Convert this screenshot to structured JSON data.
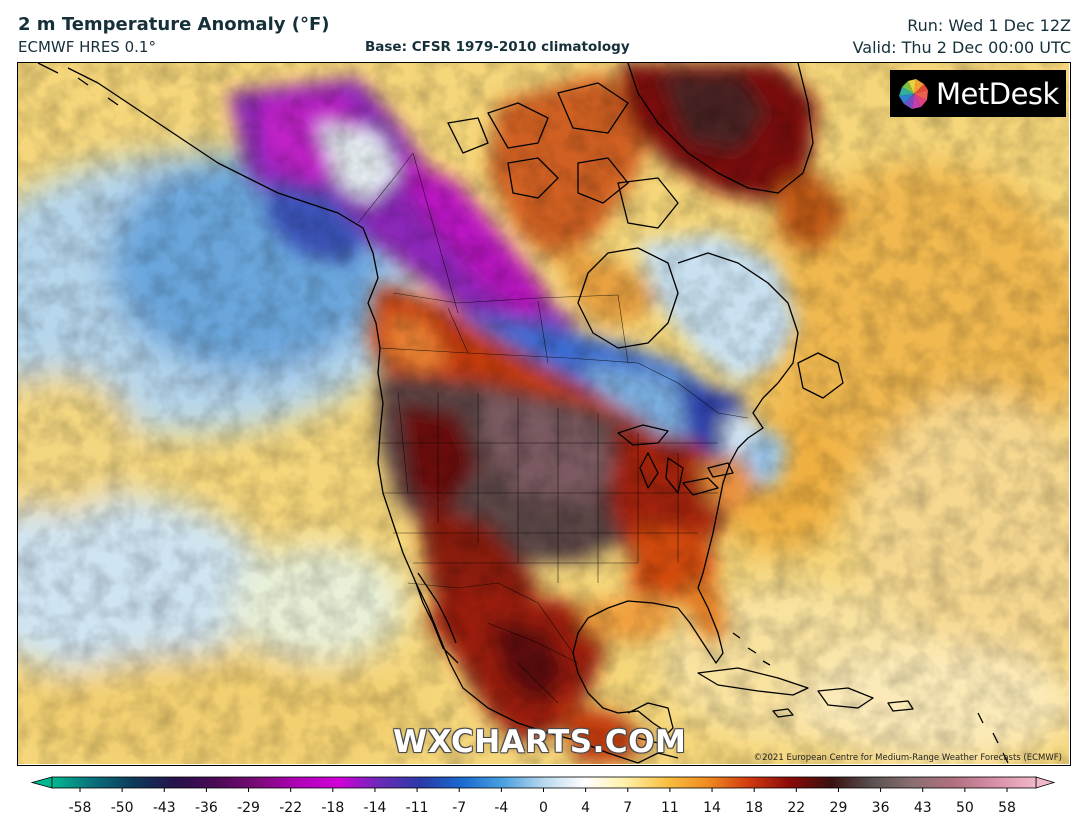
{
  "header": {
    "title": "2 m Temperature Anomaly (°F)",
    "model": "ECMWF HRES 0.1°",
    "base": "Base: CFSR 1979-2010 climatology",
    "run": "Run: Wed 1 Dec 12Z",
    "valid": "Valid: Thu 2 Dec 00:00 UTC"
  },
  "logo": {
    "text": "MetDesk",
    "icon": "metdesk-pinwheel-icon"
  },
  "watermark": "WXCHARTS.COM",
  "copyright": "©2021 European Centre for Medium-Range Weather Forecasts (ECMWF)",
  "colorbar": {
    "ticks": [
      "-58",
      "-50",
      "-43",
      "-36",
      "-29",
      "-22",
      "-18",
      "-14",
      "-11",
      "-7",
      "-4",
      "0",
      "4",
      "7",
      "11",
      "14",
      "18",
      "22",
      "29",
      "36",
      "43",
      "50",
      "58"
    ],
    "colors": [
      "#00b890",
      "#0a6f7a",
      "#0c3a5a",
      "#25124a",
      "#4a0a55",
      "#7a0a78",
      "#b000b8",
      "#d000d8",
      "#6a2ab8",
      "#2a3aa8",
      "#1a6ad0",
      "#4aa0e0",
      "#b8d8ee",
      "#ffffff",
      "#fff0a8",
      "#f7c040",
      "#f08a20",
      "#d03a10",
      "#8a0a08",
      "#3a1010",
      "#5a5050",
      "#8a7070",
      "#b07080",
      "#d890a8",
      "#f0b8c8"
    ],
    "colors_note": ""
  },
  "map": {
    "palette": {
      "pacific_blue": "#a8cee8",
      "deep_blue": "#2a5ab8",
      "purple": "#4a1a8a",
      "magenta": "#c018c8",
      "ocean_yellow": "#f7d870",
      "orange": "#ee9a30",
      "red": "#c02a10",
      "dark_red": "#6a0808",
      "grey_brown": "#5a4848",
      "pale_blue": "#d8ecf6"
    }
  }
}
